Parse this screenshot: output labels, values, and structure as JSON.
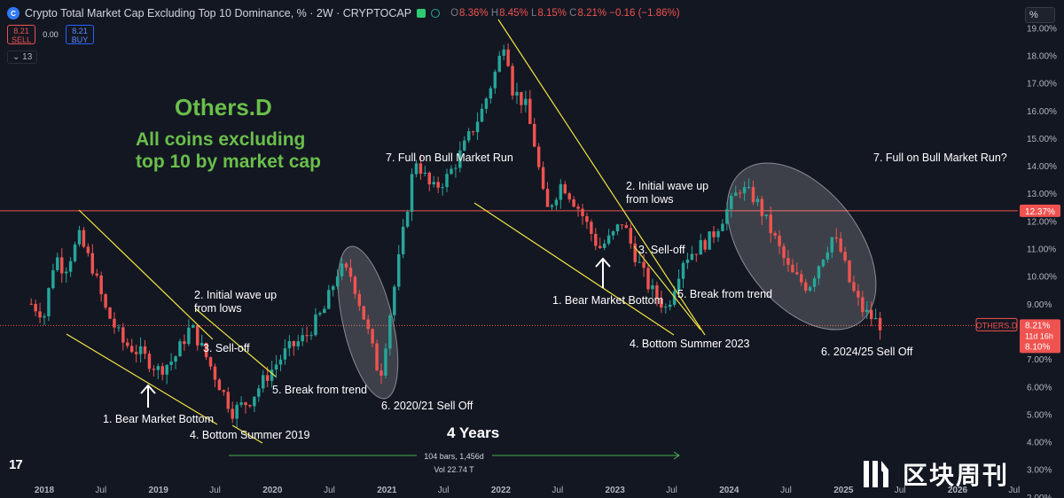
{
  "header": {
    "logo_glyph": "C",
    "title": "Crypto Total Market Cap Excluding Top 10 Dominance, % · 2W · CRYPTOCAP",
    "ohlc": [
      {
        "label": "O",
        "value": "8.36%"
      },
      {
        "label": "H",
        "value": "8.45%"
      },
      {
        "label": "L",
        "value": "8.15%"
      },
      {
        "label": "C",
        "value": "8.21%"
      }
    ],
    "change": "−0.16 (−1.86%)"
  },
  "trade": {
    "sell_price": "8.21",
    "sell_label": "SELL",
    "spread": "0.00",
    "buy_price": "8.21",
    "buy_label": "BUY"
  },
  "indicator_count": "13",
  "percent_button": "%",
  "headline": {
    "title": "Others.D",
    "subtitle_line1": "All coins excluding",
    "subtitle_line2": "top 10 by market cap"
  },
  "annotations": {
    "c1_bear_bottom": "1. Bear Market Bottom",
    "c1_initial_wave": "2. Initial wave up\nfrom lows",
    "c1_selloff": "3. Sell-off",
    "c1_bottom_summer": "4. Bottom Summer 2019",
    "c1_break_trend": "5. Break from trend",
    "c1_selloff_2021": "6. 2020/21 Sell Off",
    "c1_bull_run": "7. Full on Bull Market Run",
    "c2_bear_bottom": "1. Bear Market Bottom",
    "c2_initial_wave": "2. Initial wave up\nfrom lows",
    "c2_selloff": "3. Sell-off",
    "c2_bottom_summer": "4. Bottom Summer 2023",
    "c2_break_trend": "5. Break from trend",
    "c2_selloff_2024": "6. 2024/25 Sell Off",
    "c2_bull_run": "7. Full on Bull Market Run?"
  },
  "measure": {
    "title": "4 Years",
    "bars": "104 bars, 1,456d",
    "vol": "Vol 22.74 T"
  },
  "price_labels": {
    "symbol": "OTHERS.D",
    "last": "8.21%",
    "countdown": "11d 16h",
    "low": "8.10%",
    "resistance": "12.37%"
  },
  "watermark": {
    "text": "区块周刊",
    "tv": "17"
  },
  "colors": {
    "background": "#131722",
    "up": "#26a69a",
    "down": "#ef5350",
    "trendline": "#f0e442",
    "green_text": "#6abf4b"
  },
  "chart_data": {
    "type": "candlestick",
    "title": "Crypto Total Market Cap Excluding Top 10 Dominance, % · 2W · CRYPTOCAP",
    "y_axis": {
      "ticks": [
        "19.00%",
        "18.00%",
        "17.00%",
        "16.00%",
        "15.00%",
        "14.00%",
        "13.00%",
        "12.00%",
        "11.00%",
        "10.00%",
        "9.00%",
        "8.00%",
        "7.00%",
        "6.00%",
        "5.00%",
        "4.00%",
        "3.00%",
        "2.00%"
      ],
      "ylim": [
        1.6,
        19.5
      ],
      "unit": "%"
    },
    "x_axis": {
      "ticks": [
        "2018",
        "Jul",
        "2019",
        "Jul",
        "2020",
        "Jul",
        "2021",
        "Jul",
        "2022",
        "Jul",
        "2023",
        "Jul",
        "2024",
        "Jul",
        "2025",
        "Jul",
        "2026",
        "Jul"
      ]
    },
    "horizontal_lines": [
      {
        "name": "resistance",
        "value": 12.37
      },
      {
        "name": "current",
        "value": 8.21
      }
    ],
    "series": [
      {
        "anchors": [
          [
            "2017-11-20",
            9.0
          ],
          [
            "2018-01-01",
            8.6
          ],
          [
            "2018-02-05",
            10.8
          ],
          [
            "2018-03-05",
            10.2
          ],
          [
            "2018-04-23",
            11.4
          ],
          [
            "2018-06-05",
            10.3
          ],
          [
            "2018-07-15",
            8.8
          ],
          [
            "2018-09-10",
            7.6
          ],
          [
            "2018-11-05",
            7.2
          ],
          [
            "2019-01-01",
            6.6
          ],
          [
            "2019-02-20",
            7.0
          ],
          [
            "2019-04-15",
            8.2
          ],
          [
            "2019-05-20",
            7.4
          ],
          [
            "2019-07-01",
            6.4
          ],
          [
            "2019-08-25",
            5.1
          ],
          [
            "2019-10-20",
            5.5
          ],
          [
            "2019-12-15",
            6.4
          ],
          [
            "2020-02-15",
            7.3
          ],
          [
            "2020-04-15",
            7.8
          ],
          [
            "2020-06-15",
            8.8
          ],
          [
            "2020-08-01",
            10.3
          ],
          [
            "2020-09-10",
            10.0
          ],
          [
            "2020-10-25",
            8.3
          ],
          [
            "2020-12-10",
            6.3
          ],
          [
            "2021-01-10",
            8.6
          ],
          [
            "2021-02-20",
            11.4
          ],
          [
            "2021-04-01",
            14.3
          ],
          [
            "2021-05-25",
            13.1
          ],
          [
            "2021-07-15",
            13.6
          ],
          [
            "2021-09-01",
            14.6
          ],
          [
            "2021-11-01",
            16.0
          ],
          [
            "2021-12-20",
            17.6
          ],
          [
            "2022-01-15",
            18.7
          ],
          [
            "2022-02-05",
            16.8
          ],
          [
            "2022-03-20",
            16.2
          ],
          [
            "2022-04-20",
            14.7
          ],
          [
            "2022-05-25",
            12.3
          ],
          [
            "2022-07-15",
            13.4
          ],
          [
            "2022-09-10",
            12.4
          ],
          [
            "2022-11-10",
            11.0
          ],
          [
            "2022-12-20",
            11.4
          ],
          [
            "2023-01-25",
            12.0
          ],
          [
            "2023-03-01",
            10.9
          ],
          [
            "2023-04-20",
            9.6
          ],
          [
            "2023-06-15",
            8.8
          ],
          [
            "2023-08-05",
            10.6
          ],
          [
            "2023-09-20",
            11.0
          ],
          [
            "2023-11-05",
            11.4
          ],
          [
            "2023-12-20",
            12.3
          ],
          [
            "2024-02-05",
            13.2
          ],
          [
            "2024-03-25",
            12.8
          ],
          [
            "2024-05-20",
            11.5
          ],
          [
            "2024-07-15",
            10.1
          ],
          [
            "2024-09-10",
            9.6
          ],
          [
            "2024-10-20",
            10.6
          ],
          [
            "2024-11-25",
            11.4
          ],
          [
            "2024-12-20",
            11.0
          ],
          [
            "2025-01-25",
            9.6
          ],
          [
            "2025-03-01",
            8.8
          ],
          [
            "2025-04-10",
            8.4
          ],
          [
            "2025-05-05",
            8.21
          ]
        ]
      }
    ]
  }
}
